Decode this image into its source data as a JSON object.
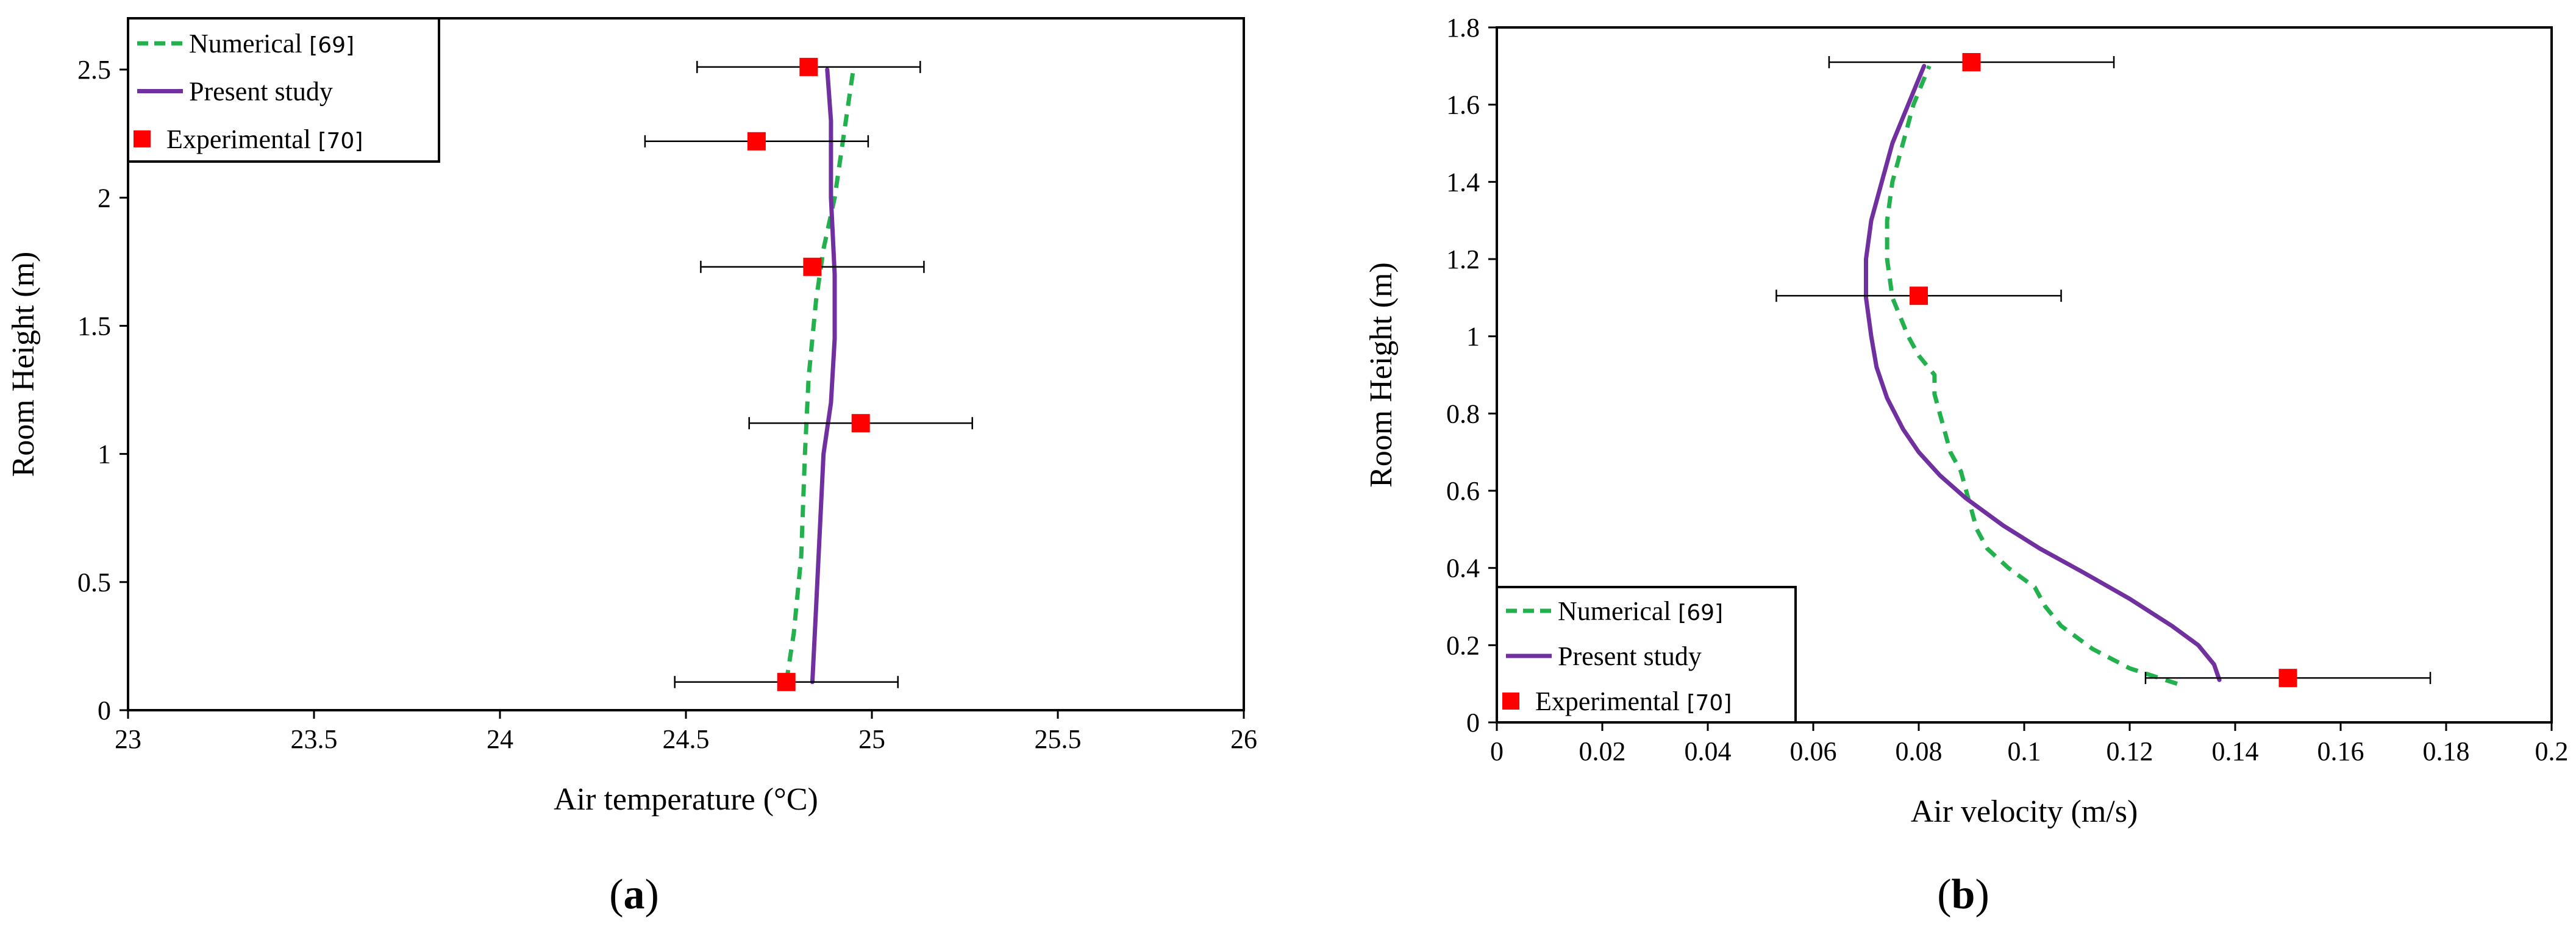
{
  "chart_data": [
    {
      "type": "line",
      "panel_label": "a",
      "xlabel": "Air temperature (°C)",
      "ylabel": "Room Height (m)",
      "xlim": [
        23,
        26
      ],
      "ylim": [
        0,
        2.7
      ],
      "xticks": [
        23,
        23.5,
        24,
        24.5,
        25,
        25.5,
        26
      ],
      "yticks": [
        0,
        0.5,
        1,
        1.5,
        2,
        2.5
      ],
      "xtick_labels": [
        "23",
        "23.5",
        "24",
        "24.5",
        "25",
        "25.5",
        "26"
      ],
      "ytick_labels": [
        "0",
        "0.5",
        "1",
        "1.5",
        "2",
        "2.5"
      ],
      "legend_position": "top-left",
      "series": [
        {
          "name": "Numerical",
          "ref": "[69]",
          "style": "dashed",
          "color": "#22b14c",
          "points": [
            [
              24.77,
              0.11
            ],
            [
              24.79,
              0.3
            ],
            [
              24.81,
              0.6
            ],
            [
              24.82,
              1.0
            ],
            [
              24.83,
              1.3
            ],
            [
              24.85,
              1.6
            ],
            [
              24.87,
              1.8
            ],
            [
              24.9,
              2.0
            ],
            [
              24.93,
              2.3
            ],
            [
              24.95,
              2.5
            ]
          ]
        },
        {
          "name": "Present study",
          "ref": "",
          "style": "solid",
          "color": "#7030a0",
          "points": [
            [
              24.84,
              0.11
            ],
            [
              24.85,
              0.4
            ],
            [
              24.86,
              0.7
            ],
            [
              24.87,
              1.0
            ],
            [
              24.89,
              1.2
            ],
            [
              24.9,
              1.45
            ],
            [
              24.9,
              1.7
            ],
            [
              24.89,
              2.0
            ],
            [
              24.89,
              2.3
            ],
            [
              24.88,
              2.5
            ]
          ]
        },
        {
          "name": "Experimental",
          "ref": "[70]",
          "style": "marker",
          "color": "#ff0000",
          "points": [
            [
              24.77,
              0.11
            ],
            [
              24.97,
              1.12
            ],
            [
              24.84,
              1.73
            ],
            [
              24.69,
              2.22
            ],
            [
              24.83,
              2.51
            ]
          ],
          "xerr": [
            0.3,
            0.3,
            0.3,
            0.3,
            0.3
          ]
        }
      ]
    },
    {
      "type": "line",
      "panel_label": "b",
      "xlabel": "Air velocity (m/s)",
      "ylabel": "Room Height (m)",
      "xlim": [
        0,
        0.2
      ],
      "ylim": [
        0,
        1.8
      ],
      "xticks": [
        0,
        0.02,
        0.04,
        0.06,
        0.08,
        0.1,
        0.12,
        0.14,
        0.16,
        0.18,
        0.2
      ],
      "yticks": [
        0,
        0.2,
        0.4,
        0.6,
        0.8,
        1.0,
        1.2,
        1.4,
        1.6,
        1.8
      ],
      "xtick_labels": [
        "0",
        "0.02",
        "0.04",
        "0.06",
        "0.08",
        "0.1",
        "0.12",
        "0.14",
        "0.16",
        "0.18",
        "0.2"
      ],
      "ytick_labels": [
        "0",
        "0.2",
        "0.4",
        "0.6",
        "0.8",
        "1",
        "1.2",
        "1.4",
        "1.6",
        "1.8"
      ],
      "legend_position": "bottom-left",
      "series": [
        {
          "name": "Numerical",
          "ref": "[69]",
          "style": "dashed",
          "color": "#22b14c",
          "points": [
            [
              0.129,
              0.1
            ],
            [
              0.12,
              0.14
            ],
            [
              0.113,
              0.19
            ],
            [
              0.107,
              0.25
            ],
            [
              0.104,
              0.3
            ],
            [
              0.102,
              0.35
            ],
            [
              0.097,
              0.4
            ],
            [
              0.093,
              0.45
            ],
            [
              0.091,
              0.5
            ],
            [
              0.09,
              0.55
            ],
            [
              0.089,
              0.6
            ],
            [
              0.088,
              0.65
            ],
            [
              0.086,
              0.7
            ],
            [
              0.085,
              0.75
            ],
            [
              0.084,
              0.8
            ],
            [
              0.083,
              0.85
            ],
            [
              0.083,
              0.9
            ],
            [
              0.08,
              0.95
            ],
            [
              0.078,
              1.0
            ],
            [
              0.075,
              1.1
            ],
            [
              0.074,
              1.2
            ],
            [
              0.074,
              1.3
            ],
            [
              0.075,
              1.4
            ],
            [
              0.077,
              1.5
            ],
            [
              0.079,
              1.6
            ],
            [
              0.082,
              1.7
            ]
          ]
        },
        {
          "name": "Present study",
          "ref": "",
          "style": "solid",
          "color": "#7030a0",
          "points": [
            [
              0.137,
              0.11
            ],
            [
              0.136,
              0.15
            ],
            [
              0.133,
              0.2
            ],
            [
              0.128,
              0.25
            ],
            [
              0.12,
              0.32
            ],
            [
              0.111,
              0.39
            ],
            [
              0.103,
              0.45
            ],
            [
              0.096,
              0.51
            ],
            [
              0.089,
              0.58
            ],
            [
              0.084,
              0.64
            ],
            [
              0.08,
              0.7
            ],
            [
              0.077,
              0.76
            ],
            [
              0.074,
              0.84
            ],
            [
              0.072,
              0.92
            ],
            [
              0.071,
              1.0
            ],
            [
              0.07,
              1.1
            ],
            [
              0.07,
              1.2
            ],
            [
              0.071,
              1.3
            ],
            [
              0.073,
              1.4
            ],
            [
              0.075,
              1.5
            ],
            [
              0.078,
              1.6
            ],
            [
              0.081,
              1.7
            ]
          ]
        },
        {
          "name": "Experimental",
          "ref": "[70]",
          "style": "marker",
          "color": "#ff0000",
          "points": [
            [
              0.15,
              0.115
            ],
            [
              0.08,
              1.105
            ],
            [
              0.09,
              1.71
            ]
          ],
          "xerr": [
            0.027,
            0.027,
            0.027
          ]
        }
      ]
    }
  ]
}
